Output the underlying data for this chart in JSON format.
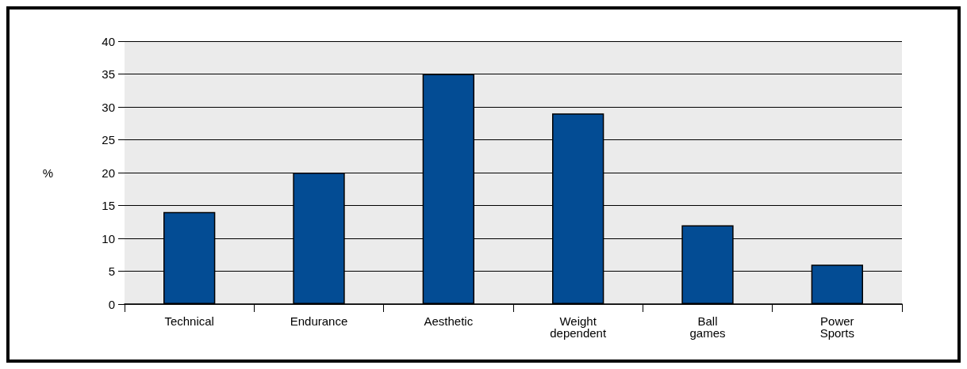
{
  "chart_data": {
    "type": "bar",
    "ylabel": "%",
    "categories": [
      "Technical",
      "Endurance",
      "Aesthetic",
      "Weight\ndependent",
      "Ball\ngames",
      "Power\nSports"
    ],
    "values": [
      14,
      20,
      35,
      29,
      12,
      6
    ],
    "color": "#034c94",
    "ylim": [
      0,
      40
    ],
    "yticks": [
      0,
      5,
      10,
      15,
      20,
      25,
      30,
      35,
      40
    ],
    "grid": "y"
  }
}
